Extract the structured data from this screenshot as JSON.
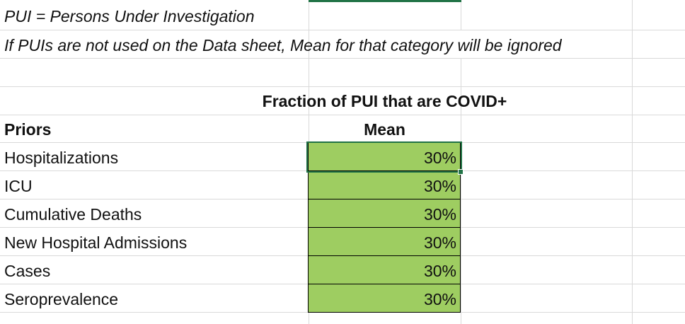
{
  "notes": {
    "line1": "PUI = Persons Under Investigation",
    "line2": "If PUIs are not used on the Data sheet, Mean for that category will be ignored"
  },
  "table": {
    "group_header": "Fraction of PUI that are COVID+",
    "row_header_label": "Priors",
    "column_header": "Mean",
    "rows": [
      {
        "label": "Hospitalizations",
        "mean": "30%"
      },
      {
        "label": "ICU",
        "mean": "30%"
      },
      {
        "label": "Cumulative Deaths",
        "mean": "30%"
      },
      {
        "label": "New Hospital Admissions",
        "mean": "30%"
      },
      {
        "label": "Cases",
        "mean": "30%"
      },
      {
        "label": "Seroprevalence",
        "mean": "30%"
      }
    ],
    "fill_color": "#9ecd61"
  },
  "selection": {
    "active_cell_row": "Hospitalizations",
    "active_cell_column": "Mean",
    "accent_color": "#217346"
  }
}
